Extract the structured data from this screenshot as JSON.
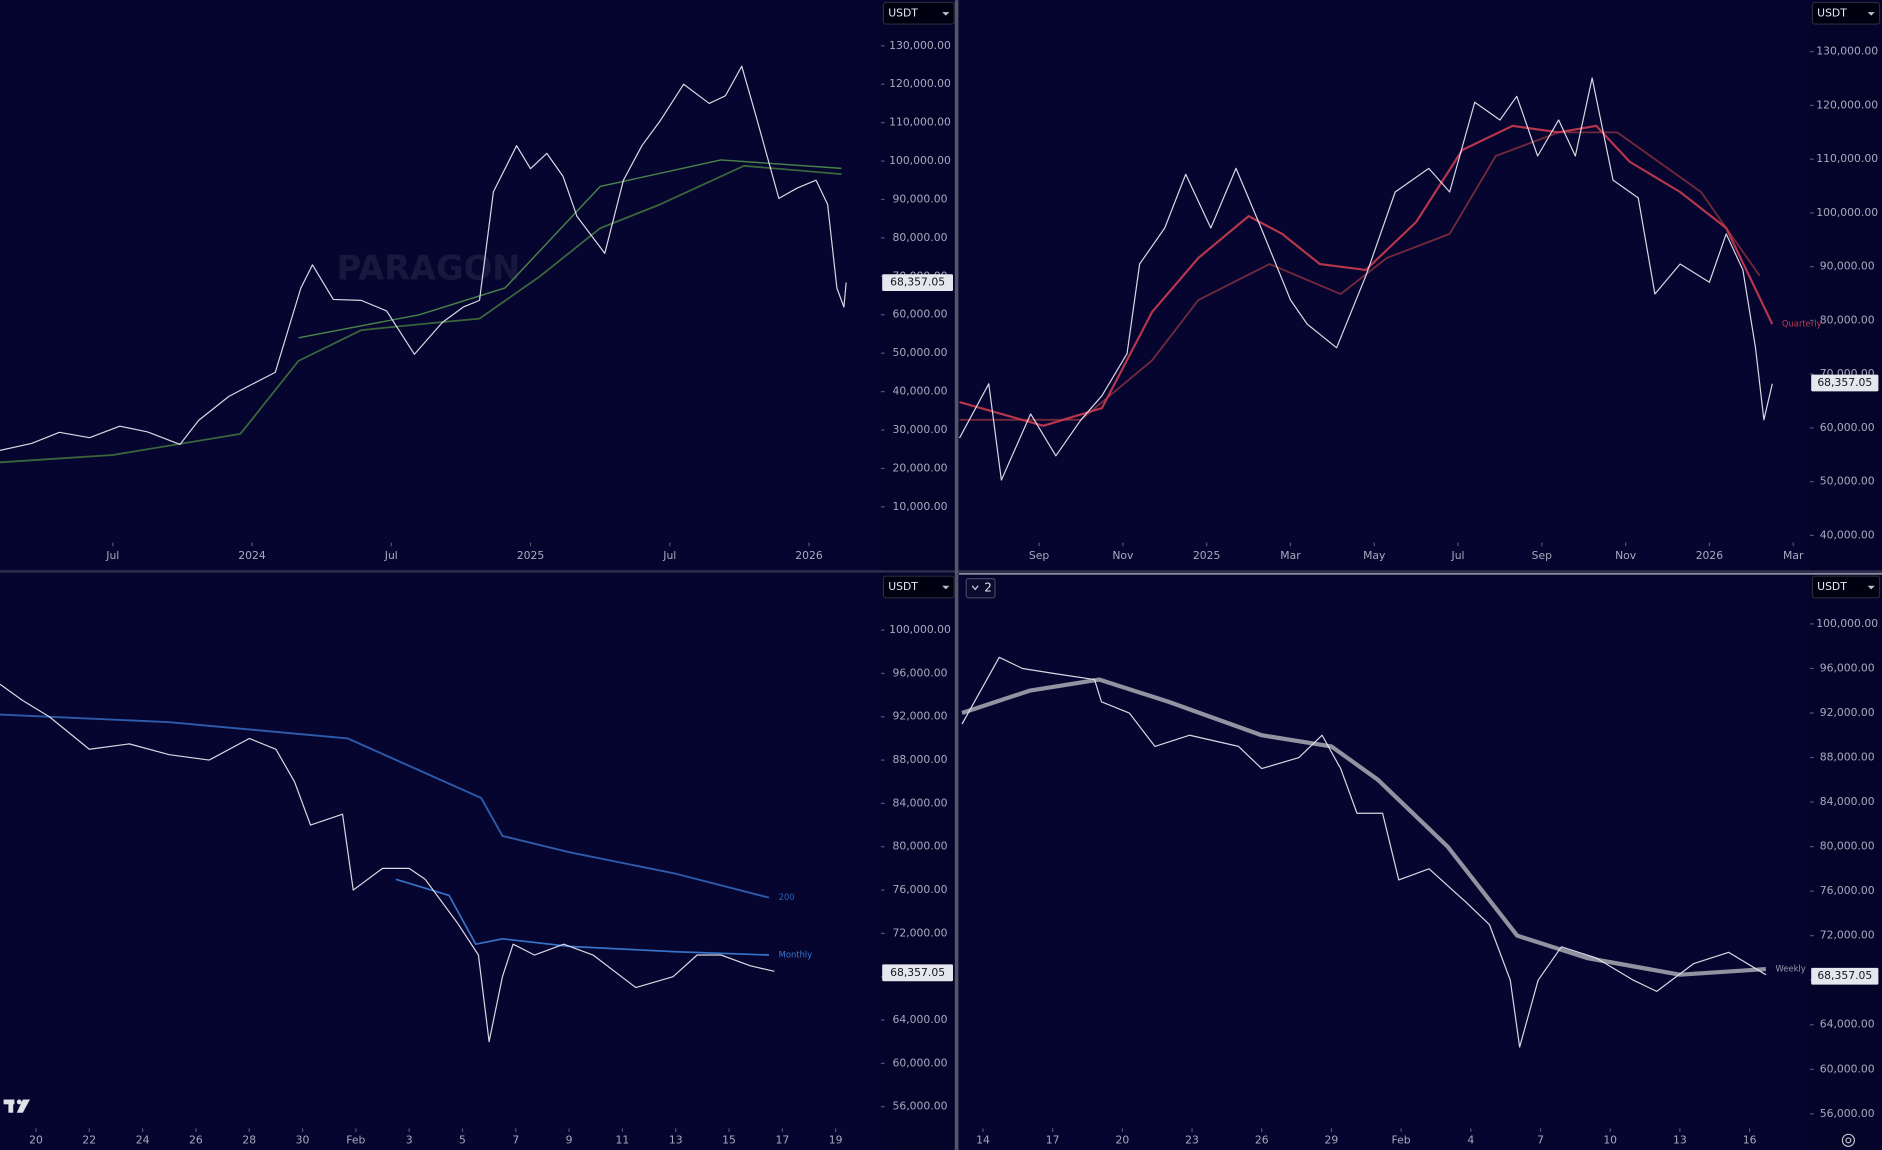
{
  "chart_data": [
    {
      "type": "line",
      "currency": "USDT",
      "watermark": "PARAGON",
      "last_price": {
        "value": 68357.05,
        "label": "68,357.05"
      },
      "xlim": [
        1.14,
        39.1
      ],
      "ylim": [
        700,
        141900
      ],
      "xticks": [
        {
          "value": 6,
          "label": "Jul"
        },
        {
          "value": 12,
          "label": "2024"
        },
        {
          "value": 18,
          "label": "Jul"
        },
        {
          "value": 24,
          "label": "2025"
        },
        {
          "value": 30,
          "label": "Jul"
        },
        {
          "value": 36,
          "label": "2026"
        }
      ],
      "yticks": [
        {
          "value": 10000,
          "label": "10,000.00"
        },
        {
          "value": 20000,
          "label": "20,000.00"
        },
        {
          "value": 30000,
          "label": "30,000.00"
        },
        {
          "value": 40000,
          "label": "40,000.00"
        },
        {
          "value": 50000,
          "label": "50,000.00"
        },
        {
          "value": 60000,
          "label": "60,000.00"
        },
        {
          "value": 70000,
          "label": "70,000.00"
        },
        {
          "value": 80000,
          "label": "80,000.00"
        },
        {
          "value": 90000,
          "label": "90,000.00"
        },
        {
          "value": 100000,
          "label": "100,000.00"
        },
        {
          "value": 110000,
          "label": "110,000.00"
        },
        {
          "value": 120000,
          "label": "120,000.00"
        },
        {
          "value": 130000,
          "label": "130,000.00"
        }
      ],
      "series": [
        {
          "color": "#3d6b3d",
          "width": 1.5,
          "x": [
            1.14,
            6,
            11.5,
            14,
            16.7,
            20,
            21.8,
            24.4,
            27,
            29.6,
            33.2,
            37.4
          ],
          "values": [
            21600,
            23500,
            29000,
            48000,
            56000,
            58000,
            59000,
            70000,
            82500,
            88750,
            98750,
            96600
          ]
        },
        {
          "color": "#4d8a4d",
          "width": 1.2,
          "x": [
            14,
            19.2,
            22.9,
            27,
            32.2,
            37.4
          ],
          "values": [
            54000,
            60000,
            67000,
            93400,
            100300,
            98100
          ]
        },
        {
          "color": "#e4e4ec",
          "width": 1,
          "x": [
            1.14,
            2.5,
            3.7,
            5,
            6.3,
            7.5,
            8.9,
            9.7,
            11,
            12,
            13,
            14.1,
            14.6,
            15.5,
            16.7,
            17.8,
            19,
            20.2,
            21.1,
            21.8,
            22.4,
            23.4,
            24,
            24.7,
            25.4,
            26,
            27.2,
            28,
            28.8,
            29.6,
            30.6,
            31.7,
            32.4,
            33.1,
            33.7,
            34.7,
            35.5,
            36.3,
            36.8,
            37.2,
            37.5,
            37.6
          ],
          "values": [
            24700,
            26500,
            29400,
            28000,
            31000,
            29500,
            26250,
            32500,
            38750,
            41900,
            45000,
            66900,
            73000,
            64000,
            63750,
            61000,
            49700,
            58000,
            62000,
            63750,
            92000,
            104000,
            98000,
            102000,
            96000,
            85600,
            76000,
            95000,
            104000,
            110600,
            120000,
            115000,
            117000,
            124700,
            112000,
            90300,
            93000,
            95000,
            88750,
            66900,
            62000,
            68400
          ]
        }
      ]
    },
    {
      "type": "line",
      "currency": "USDT",
      "last_price": {
        "value": 68357.05,
        "label": "68,357.05"
      },
      "xlim": [
        6.06,
        26.4
      ],
      "ylim": [
        38660,
        139600
      ],
      "xticks": [
        {
          "value": 8,
          "label": "Sep"
        },
        {
          "value": 10,
          "label": "Nov"
        },
        {
          "value": 12,
          "label": "2025"
        },
        {
          "value": 14,
          "label": "Mar"
        },
        {
          "value": 16,
          "label": "May"
        },
        {
          "value": 18,
          "label": "Jul"
        },
        {
          "value": 20,
          "label": "Sep"
        },
        {
          "value": 22,
          "label": "Nov"
        },
        {
          "value": 24,
          "label": "2026"
        },
        {
          "value": 26,
          "label": "Mar"
        }
      ],
      "yticks": [
        {
          "value": 40000,
          "label": "40,000.00"
        },
        {
          "value": 50000,
          "label": "50,000.00"
        },
        {
          "value": 60000,
          "label": "60,000.00"
        },
        {
          "value": 70000,
          "label": "70,000.00"
        },
        {
          "value": 80000,
          "label": "80,000.00"
        },
        {
          "value": 90000,
          "label": "90,000.00"
        },
        {
          "value": 100000,
          "label": "100,000.00"
        },
        {
          "value": 110000,
          "label": "110,000.00"
        },
        {
          "value": 120000,
          "label": "120,000.00"
        },
        {
          "value": 130000,
          "label": "130,000.00"
        }
      ],
      "series": [
        {
          "color": "#7a2a3c",
          "width": 1.5,
          "x": [
            6.1,
            9,
            10.7,
            11.8,
            13.5,
            15.2,
            16.3,
            17.8,
            18.9,
            20.4,
            21.8,
            23.8,
            25.2
          ],
          "values": [
            61500,
            61500,
            72600,
            83800,
            90500,
            84900,
            91600,
            96100,
            110600,
            115000,
            115000,
            103900,
            88300
          ]
        },
        {
          "name": "Quarterly",
          "color": "#c0394e",
          "width": 1.8,
          "x": [
            6.1,
            8.1,
            9.5,
            10.7,
            11.8,
            13,
            13.8,
            14.7,
            15.8,
            17,
            18.1,
            19.3,
            20.4,
            21.3,
            22.1,
            23.3,
            24.4,
            25.5
          ],
          "values": [
            64800,
            60400,
            63700,
            81600,
            91600,
            99400,
            96100,
            90500,
            89400,
            98300,
            111700,
            116200,
            115000,
            116200,
            109500,
            103900,
            97200,
            79300
          ]
        },
        {
          "color": "#e4e4ec",
          "width": 1,
          "x": [
            6.1,
            6.8,
            7.1,
            7.8,
            8.4,
            9,
            9.5,
            10.1,
            10.4,
            11,
            11.5,
            12.1,
            12.7,
            13.3,
            14,
            14.4,
            15.1,
            15.8,
            16.5,
            17.3,
            17.8,
            18.4,
            19,
            19.4,
            19.9,
            20.4,
            20.8,
            21.2,
            21.7,
            22.3,
            22.7,
            23.3,
            24,
            24.4,
            24.8,
            25.1,
            25.3,
            25.5
          ],
          "values": [
            58100,
            68200,
            50300,
            62600,
            54800,
            61500,
            66000,
            73800,
            90500,
            97200,
            107200,
            97200,
            108300,
            97200,
            83800,
            79300,
            74900,
            88300,
            103900,
            108300,
            103900,
            120600,
            117300,
            121700,
            110600,
            117300,
            110600,
            125100,
            106100,
            102800,
            84900,
            90500,
            87100,
            96100,
            89400,
            74900,
            61500,
            68200
          ]
        }
      ]
    },
    {
      "type": "line",
      "currency": "USDT",
      "last_price": {
        "value": 68357.05,
        "label": "68,357.05"
      },
      "xlim": [
        -1.35,
        31.7
      ],
      "ylim": [
        54000,
        105200
      ],
      "xticks": [
        {
          "value": 0,
          "label": "20"
        },
        {
          "value": 2,
          "label": "22"
        },
        {
          "value": 4,
          "label": "24"
        },
        {
          "value": 6,
          "label": "26"
        },
        {
          "value": 8,
          "label": "28"
        },
        {
          "value": 10,
          "label": "30"
        },
        {
          "value": 12,
          "label": "Feb"
        },
        {
          "value": 14,
          "label": "3"
        },
        {
          "value": 16,
          "label": "5"
        },
        {
          "value": 18,
          "label": "7"
        },
        {
          "value": 20,
          "label": "9"
        },
        {
          "value": 22,
          "label": "11"
        },
        {
          "value": 24,
          "label": "13"
        },
        {
          "value": 26,
          "label": "15"
        },
        {
          "value": 28,
          "label": "17"
        },
        {
          "value": 30,
          "label": "19"
        }
      ],
      "yticks": [
        {
          "value": 56000,
          "label": "56,000.00"
        },
        {
          "value": 60000,
          "label": "60,000.00"
        },
        {
          "value": 64000,
          "label": "64,000.00"
        },
        {
          "value": 68000,
          "label": "68,000.00"
        },
        {
          "value": 72000,
          "label": "72,000.00"
        },
        {
          "value": 76000,
          "label": "76,000.00"
        },
        {
          "value": 80000,
          "label": "80,000.00"
        },
        {
          "value": 84000,
          "label": "84,000.00"
        },
        {
          "value": 88000,
          "label": "88,000.00"
        },
        {
          "value": 92000,
          "label": "92,000.00"
        },
        {
          "value": 96000,
          "label": "96,000.00"
        },
        {
          "value": 100000,
          "label": "100,000.00"
        }
      ],
      "series": [
        {
          "name": "200",
          "color": "#2f5fb0",
          "width": 1.6,
          "x": [
            -1.35,
            5,
            11.7,
            16.7,
            17.5,
            20,
            24,
            27.5
          ],
          "values": [
            92200,
            91500,
            90000,
            84500,
            81000,
            79500,
            77500,
            75300
          ]
        },
        {
          "name": "Monthly",
          "color": "#3a78d0",
          "width": 1.4,
          "x": [
            13.5,
            15.5,
            16.5,
            17.5,
            20,
            24,
            27.5
          ],
          "values": [
            77000,
            75500,
            71000,
            71500,
            70800,
            70300,
            70000
          ]
        },
        {
          "color": "#e4e4ec",
          "width": 1,
          "x": [
            -1.35,
            -0.5,
            0.5,
            2,
            3.5,
            5,
            6.5,
            8,
            9,
            9.7,
            10.3,
            11.5,
            11.9,
            13,
            14,
            14.6,
            15.8,
            16.6,
            17,
            17.5,
            17.9,
            18.7,
            19.8,
            20.9,
            22.5,
            23.9,
            24.8,
            25.7,
            26.8,
            27.7
          ],
          "values": [
            95000,
            93500,
            92000,
            89000,
            89500,
            88500,
            88000,
            90000,
            89000,
            86000,
            82000,
            83000,
            76000,
            78000,
            78000,
            77000,
            73000,
            70000,
            62000,
            68000,
            71000,
            70000,
            71000,
            70000,
            67000,
            68000,
            70000,
            70000,
            69000,
            68500
          ]
        }
      ]
    },
    {
      "type": "line",
      "currency": "USDT",
      "pane_badge": "2",
      "last_price": {
        "value": 68357.05,
        "label": "68,357.05"
      },
      "xlim": [
        -0.98,
        35.6
      ],
      "ylim": [
        54700,
        104500
      ],
      "xticks": [
        {
          "value": 0,
          "label": "14"
        },
        {
          "value": 3,
          "label": "17"
        },
        {
          "value": 6,
          "label": "20"
        },
        {
          "value": 9,
          "label": "23"
        },
        {
          "value": 12,
          "label": "26"
        },
        {
          "value": 15,
          "label": "29"
        },
        {
          "value": 18,
          "label": "Feb"
        },
        {
          "value": 21,
          "label": "4"
        },
        {
          "value": 24,
          "label": "7"
        },
        {
          "value": 27,
          "label": "10"
        },
        {
          "value": 30,
          "label": "13"
        },
        {
          "value": 33,
          "label": "16"
        }
      ],
      "yticks": [
        {
          "value": 56000,
          "label": "56,000.00"
        },
        {
          "value": 60000,
          "label": "60,000.00"
        },
        {
          "value": 64000,
          "label": "64,000.00"
        },
        {
          "value": 68000,
          "label": "68,000.00"
        },
        {
          "value": 72000,
          "label": "72,000.00"
        },
        {
          "value": 76000,
          "label": "76,000.00"
        },
        {
          "value": 80000,
          "label": "80,000.00"
        },
        {
          "value": 84000,
          "label": "84,000.00"
        },
        {
          "value": 88000,
          "label": "88,000.00"
        },
        {
          "value": 92000,
          "label": "92,000.00"
        },
        {
          "value": 96000,
          "label": "96,000.00"
        },
        {
          "value": 100000,
          "label": "100,000.00"
        }
      ],
      "series": [
        {
          "name": "Weekly",
          "color": "#9a9aa8",
          "width": 3.5,
          "x": [
            -0.9,
            2,
            5,
            8,
            12,
            15,
            17,
            20,
            23,
            26,
            30,
            33.7
          ],
          "values": [
            92000,
            94000,
            95000,
            93000,
            90000,
            89000,
            86000,
            80000,
            72000,
            70000,
            68500,
            69000
          ]
        },
        {
          "color": "#e4e4ec",
          "width": 1,
          "x": [
            -0.9,
            0.7,
            1.7,
            3.2,
            4.8,
            5.1,
            6.3,
            7.4,
            8.9,
            11,
            12,
            13.6,
            14.6,
            15.4,
            16.1,
            17.2,
            17.9,
            19.2,
            20.8,
            21.8,
            22.7,
            23.1,
            23.9,
            24.9,
            26.4,
            28,
            29,
            30.6,
            32.1,
            33.7
          ],
          "values": [
            91000,
            97000,
            96000,
            95500,
            95000,
            93000,
            92000,
            89000,
            90000,
            89000,
            87000,
            88000,
            90000,
            87000,
            83000,
            83000,
            77000,
            78000,
            75000,
            73000,
            68000,
            62000,
            68000,
            71000,
            70000,
            68000,
            67000,
            69500,
            70500,
            68500
          ]
        }
      ]
    }
  ]
}
